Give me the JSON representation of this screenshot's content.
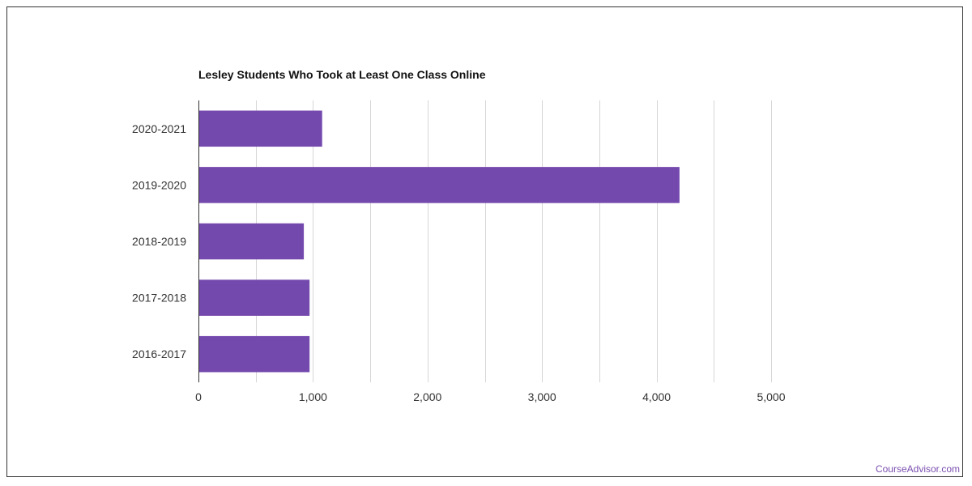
{
  "source_link": "CourseAdvisor.com",
  "colors": {
    "bar": "#7449ae",
    "grid": "#d6d6d6",
    "axis": "#333333",
    "link": "#7a4fb0"
  },
  "chart_data": {
    "type": "bar",
    "orientation": "horizontal",
    "title": "Lesley Students Who Took at Least One Class Online",
    "xlabel": "",
    "ylabel": "",
    "categories": [
      "2020-2021",
      "2019-2020",
      "2018-2019",
      "2017-2018",
      "2016-2017"
    ],
    "values": [
      1080,
      4200,
      920,
      970,
      970
    ],
    "xlim": [
      0,
      5000
    ],
    "x_ticks": [
      0,
      1000,
      2000,
      3000,
      4000,
      5000
    ],
    "x_tick_labels": [
      "0",
      "1,000",
      "2,000",
      "3,000",
      "4,000",
      "5,000"
    ],
    "grid": true,
    "legend": "none"
  }
}
